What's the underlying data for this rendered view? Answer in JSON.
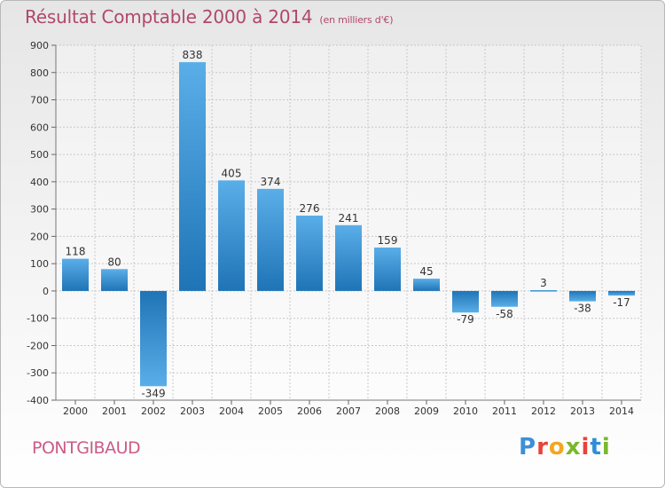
{
  "header": {
    "title": "Résultat Comptable 2000 à 2014",
    "subtitle": "(en milliers d'€)"
  },
  "footer": {
    "town": "PONTGIBAUD",
    "brand": "Proxiti"
  },
  "colors": {
    "bar_top": "#5aaee8",
    "bar_bottom": "#1f74b6",
    "grid": "#c8c8c8",
    "axis_text": "#333333",
    "title": "#b0486a",
    "town": "#cc5b86",
    "brand_letters": [
      "#3d8fd8",
      "#e8433a",
      "#f2a81d",
      "#79b82c",
      "#e8433a",
      "#2f8fd6",
      "#79b82c"
    ]
  },
  "chart_data": {
    "type": "bar",
    "title": "Résultat Comptable 2000 à 2014",
    "subtitle": "(en milliers d'€)",
    "xlabel": "",
    "ylabel": "",
    "ylim": [
      -400,
      900
    ],
    "yticks": [
      -400,
      -300,
      -200,
      -100,
      0,
      100,
      200,
      300,
      400,
      500,
      600,
      700,
      800,
      900
    ],
    "grid": true,
    "categories": [
      "2000",
      "2001",
      "2002",
      "2003",
      "2004",
      "2005",
      "2006",
      "2007",
      "2008",
      "2009",
      "2010",
      "2011",
      "2012",
      "2013",
      "2014"
    ],
    "values": [
      118,
      80,
      -349,
      838,
      405,
      374,
      276,
      241,
      159,
      45,
      -79,
      -58,
      3,
      -38,
      -17
    ],
    "labels": [
      "118",
      "80",
      "-349",
      "838",
      "405",
      "374",
      "276",
      "241",
      "159",
      "45",
      "-79",
      "-58",
      "3",
      "-38",
      "-17"
    ]
  }
}
